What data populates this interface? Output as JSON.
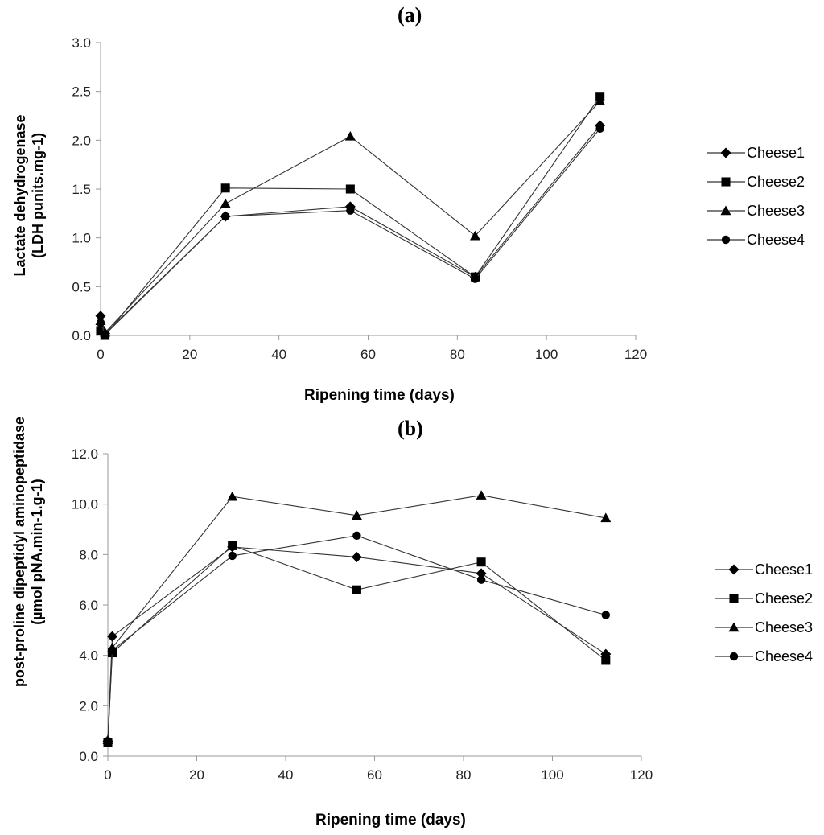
{
  "colors": {
    "line": "#333333",
    "marker": "#000000",
    "axis": "#999999",
    "text": "#222222"
  },
  "chart_data": [
    {
      "id": "a",
      "type": "line",
      "panel_label": "(a)",
      "title": "",
      "xlabel": "Ripening time (days)",
      "ylabel_line1": "Lactate dehydrogenase",
      "ylabel_line2": "(LDH punits.mg-1)",
      "xlim": [
        0,
        120
      ],
      "ylim": [
        0.0,
        3.0
      ],
      "xticks": [
        0,
        20,
        40,
        60,
        80,
        100,
        120
      ],
      "yticks": [
        0.0,
        0.5,
        1.0,
        1.5,
        2.0,
        2.5,
        3.0
      ],
      "ytick_format": 1,
      "legend_placement": "right",
      "series": [
        {
          "name": "Cheese1",
          "marker": "diamond",
          "x": [
            0,
            1,
            28,
            56,
            84,
            112
          ],
          "y": [
            0.2,
            0.02,
            1.22,
            1.32,
            0.6,
            2.15
          ]
        },
        {
          "name": "Cheese2",
          "marker": "square",
          "x": [
            0,
            1,
            28,
            56,
            84,
            112
          ],
          "y": [
            0.05,
            0.0,
            1.51,
            1.5,
            0.6,
            2.45
          ]
        },
        {
          "name": "Cheese3",
          "marker": "triangle",
          "x": [
            0,
            1,
            28,
            56,
            84,
            112
          ],
          "y": [
            0.15,
            0.03,
            1.35,
            2.04,
            1.02,
            2.4
          ]
        },
        {
          "name": "Cheese4",
          "marker": "circle",
          "x": [
            0,
            1,
            28,
            56,
            84,
            112
          ],
          "y": [
            0.13,
            0.01,
            1.22,
            1.28,
            0.58,
            2.12
          ]
        }
      ]
    },
    {
      "id": "b",
      "type": "line",
      "panel_label": "(b)",
      "title": "",
      "xlabel": "Ripening time (days)",
      "ylabel_line1": "post-proline dipeptidyl aminopeptidase",
      "ylabel_line2": "(µmol pNA.min-1.g-1)",
      "xlim": [
        0,
        120
      ],
      "ylim": [
        0.0,
        12.0
      ],
      "xticks": [
        0,
        20,
        40,
        60,
        80,
        100,
        120
      ],
      "yticks": [
        0.0,
        2.0,
        4.0,
        6.0,
        8.0,
        10.0,
        12.0
      ],
      "ytick_format": 1,
      "legend_placement": "right",
      "series": [
        {
          "name": "Cheese1",
          "marker": "diamond",
          "x": [
            0,
            1,
            28,
            56,
            84,
            112
          ],
          "y": [
            0.6,
            4.75,
            8.3,
            7.9,
            7.25,
            4.05
          ]
        },
        {
          "name": "Cheese2",
          "marker": "square",
          "x": [
            0,
            1,
            28,
            56,
            84,
            112
          ],
          "y": [
            0.55,
            4.1,
            8.35,
            6.6,
            7.7,
            3.8
          ]
        },
        {
          "name": "Cheese3",
          "marker": "triangle",
          "x": [
            0,
            1,
            28,
            56,
            84,
            112
          ],
          "y": [
            0.65,
            4.3,
            10.3,
            9.55,
            10.35,
            9.45
          ]
        },
        {
          "name": "Cheese4",
          "marker": "circle",
          "x": [
            0,
            1,
            28,
            56,
            84,
            112
          ],
          "y": [
            0.6,
            4.2,
            7.95,
            8.75,
            7.0,
            5.6
          ]
        }
      ]
    }
  ]
}
